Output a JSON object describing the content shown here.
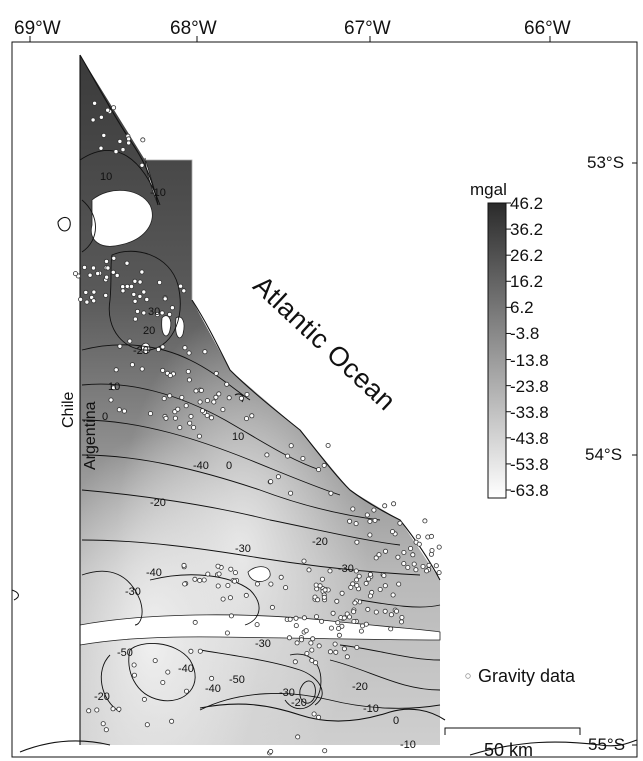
{
  "longitude_labels": [
    "69°W",
    "68°W",
    "67°W",
    "66°W"
  ],
  "latitude_labels": [
    "53°S",
    "54°S",
    "55°S"
  ],
  "ocean_label": "Atlantic Ocean",
  "country_labels": [
    "Chile",
    "Argentina"
  ],
  "colorbar": {
    "title": "mgal",
    "levels": [
      "46.2",
      "36.2",
      "26.2",
      "16.2",
      "6.2",
      "-3.8",
      "-13.8",
      "-23.8",
      "-33.8",
      "-43.8",
      "-53.8",
      "-63.8"
    ],
    "color_max": "#2b2b2b",
    "color_min": "#ffffff"
  },
  "contour_labels": [
    "10",
    "-10",
    "30",
    "-20",
    "20",
    "10",
    "0",
    "10",
    "-40",
    "0",
    "-20",
    "-20",
    "-30",
    "-30",
    "-30",
    "-40",
    "-30",
    "-50",
    "-40",
    "-50",
    "-40",
    "-30",
    "-20",
    "-20",
    "-10",
    "0",
    "-10",
    "-20"
  ],
  "legend": {
    "symbol": "circle",
    "label": "Gravity data"
  },
  "scale_bar": {
    "label": "50 km"
  }
}
